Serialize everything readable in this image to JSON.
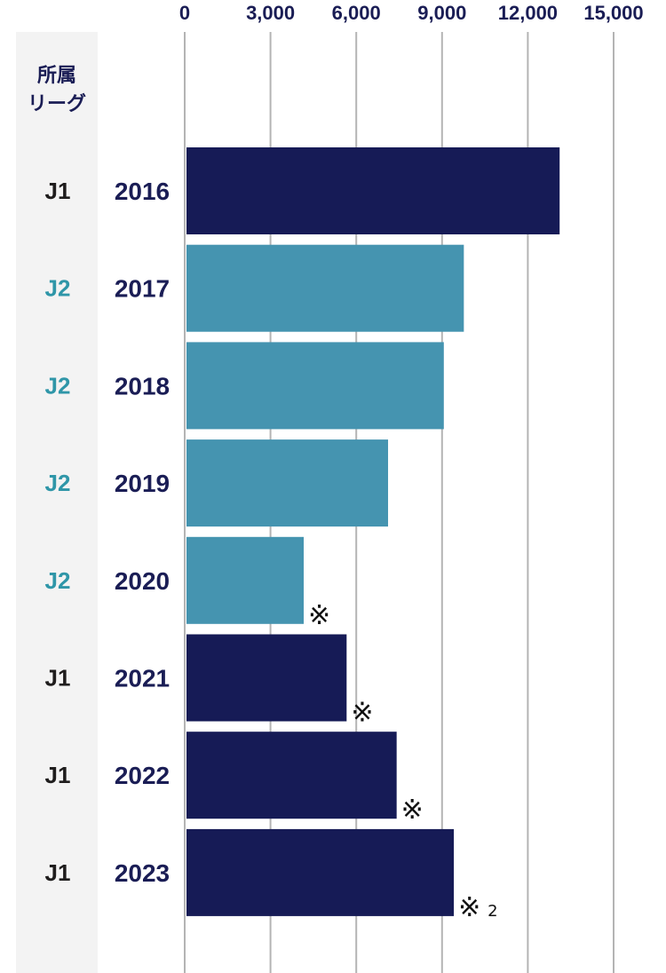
{
  "chart_data": {
    "type": "bar",
    "orientation": "horizontal",
    "column_header": [
      "所属",
      "リーグ"
    ],
    "x_ticks": [
      "0",
      "3,000",
      "6,000",
      "9,000",
      "12,000",
      "15,000"
    ],
    "xlim": [
      0,
      15000
    ],
    "grid": true,
    "colors": {
      "J1": "#161b56",
      "J2": "#4594b0"
    },
    "league_label_colors": {
      "J1": "#1f1d1d",
      "J2": "#2f96a8"
    },
    "categories": [
      "2016",
      "2017",
      "2018",
      "2019",
      "2020",
      "2021",
      "2022",
      "2023"
    ],
    "leagues": [
      "J1",
      "J2",
      "J2",
      "J2",
      "J2",
      "J1",
      "J1",
      "J1"
    ],
    "values": [
      13050,
      9700,
      9000,
      7050,
      4100,
      5600,
      7350,
      9350
    ],
    "notes": [
      null,
      null,
      null,
      null,
      "※",
      "※",
      "※",
      "※"
    ],
    "note_subscripts": [
      null,
      null,
      null,
      null,
      null,
      null,
      null,
      "2"
    ]
  }
}
